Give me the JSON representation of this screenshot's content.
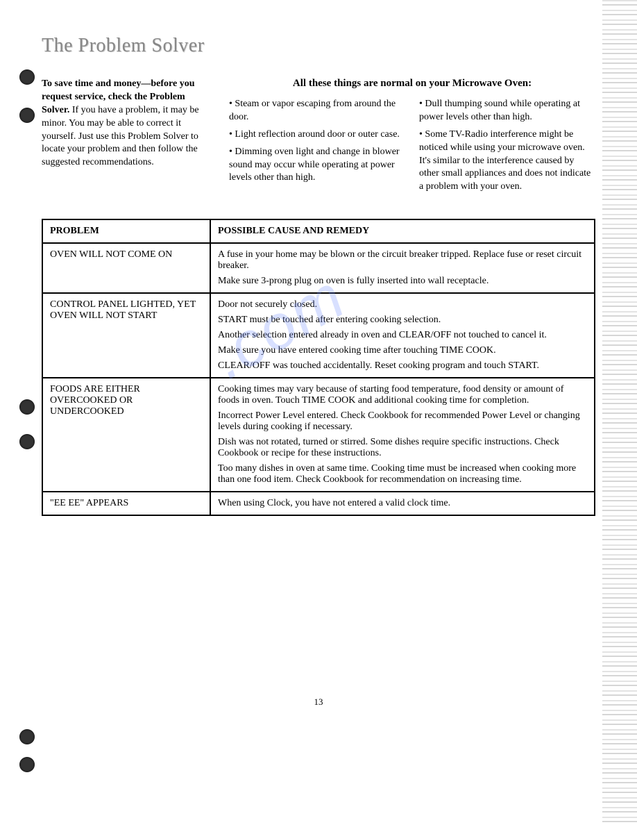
{
  "title": "The Problem Solver",
  "intro": {
    "bold_lines": "To save time and money—before you request service, check the Problem Solver.",
    "rest": "If you have a problem, it may be minor. You may be able to correct it yourself. Just use this Problem Solver to locate your problem and then follow the suggested recommendations."
  },
  "normal": {
    "heading": "All these things are normal on your Microwave Oven:",
    "col1": [
      "Steam or vapor escaping from around the door.",
      "Light reflection around door or outer case.",
      "Dimming oven light and change in blower sound may occur while operating at power levels other than high."
    ],
    "col2": [
      "Dull thumping sound while operating at power levels other than high.",
      "Some TV-Radio interference might be noticed while using your microwave oven. It's similar to the interference caused by other small appliances and does not indicate a problem with your oven."
    ]
  },
  "table": {
    "headers": {
      "problem": "PROBLEM",
      "remedy": "POSSIBLE CAUSE AND REMEDY"
    },
    "rows": [
      {
        "problem": "OVEN WILL NOT COME ON",
        "remedies": [
          "A fuse in your home may be blown or the circuit breaker tripped. Replace fuse or reset circuit breaker.",
          "Make sure 3-prong plug on oven is fully inserted into wall receptacle."
        ]
      },
      {
        "problem": "CONTROL PANEL LIGHTED, YET OVEN WILL NOT START",
        "remedies": [
          "Door not securely closed.",
          "START must be touched after entering cooking selection.",
          "Another selection entered already in oven and CLEAR/OFF not touched to cancel it.",
          "Make sure you have entered cooking time after touching TIME COOK.",
          "CLEAR/OFF was touched accidentally. Reset cooking program and touch START."
        ]
      },
      {
        "problem": "FOODS ARE EITHER OVERCOOKED OR UNDERCOOKED",
        "remedies": [
          "Cooking times may vary because of starting food temperature, food density or amount of foods in oven. Touch TIME COOK and additional cooking time for completion.",
          "Incorrect Power Level entered. Check Cookbook for recommended Power Level or changing levels during cooking if necessary.",
          "Dish was not rotated, turned or stirred. Some dishes require specific instructions. Check Cookbook or recipe for these instructions.",
          "Too many dishes in oven at same time. Cooking time must be increased when cooking more than one food item. Check Cookbook for recommendation on increasing time."
        ]
      },
      {
        "problem": "\"EE EE\" APPEARS",
        "remedies": [
          "When using Clock, you have not entered a valid clock time."
        ]
      }
    ]
  },
  "page_number": "13",
  "colors": {
    "title_color": "#888888",
    "text_color": "#000000",
    "border_color": "#000000",
    "watermark_color": "rgba(100,130,255,0.25)"
  }
}
